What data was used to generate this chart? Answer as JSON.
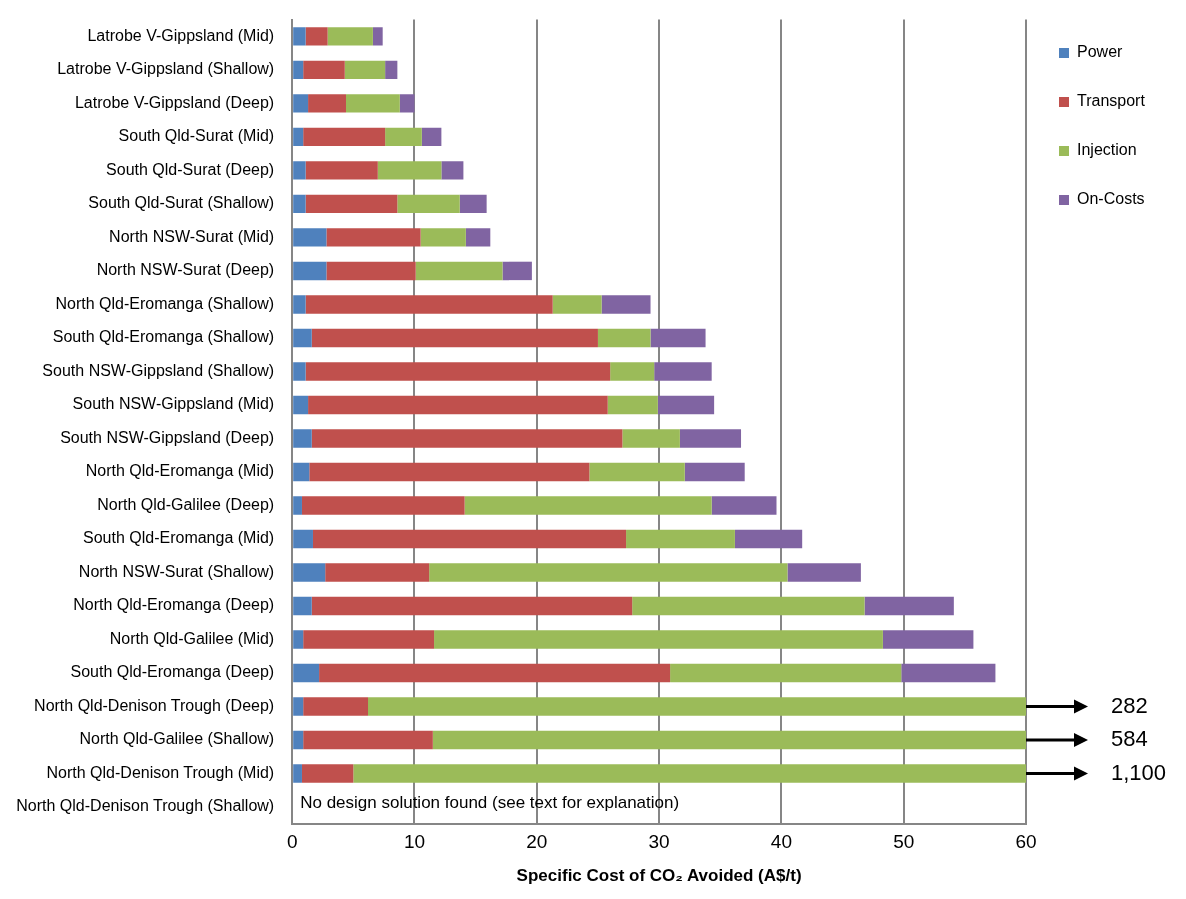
{
  "chart_data": {
    "type": "bar",
    "orientation": "horizontal",
    "stacked": true,
    "categories": [
      "Latrobe V-Gippsland (Mid)",
      "Latrobe V-Gippsland (Shallow)",
      "Latrobe V-Gippsland (Deep)",
      "South Qld-Surat (Mid)",
      "South Qld-Surat (Deep)",
      "South Qld-Surat (Shallow)",
      "North NSW-Surat (Mid)",
      "North NSW-Surat (Deep)",
      "North Qld-Eromanga (Shallow)",
      "South Qld-Eromanga (Shallow)",
      "South NSW-Gippsland (Shallow)",
      "South NSW-Gippsland (Mid)",
      "South NSW-Gippsland (Deep)",
      "North Qld-Eromanga (Mid)",
      "North Qld-Galilee (Deep)",
      "South Qld-Eromanga (Mid)",
      "North NSW-Surat (Shallow)",
      "North Qld-Eromanga (Deep)",
      "North Qld-Galilee (Mid)",
      "South Qld-Eromanga (Deep)",
      "North Qld-Denison Trough (Deep)",
      "North Qld-Galilee (Shallow)",
      "North Qld-Denison Trough (Mid)",
      "North Qld-Denison Trough (Shallow)"
    ],
    "series": [
      {
        "name": "Power",
        "color": "#4f81bd",
        "values": [
          1.1,
          0.9,
          1.3,
          0.9,
          1.1,
          1.1,
          2.8,
          2.8,
          1.1,
          1.6,
          1.1,
          1.3,
          1.6,
          1.4,
          0.8,
          1.7,
          2.7,
          1.6,
          0.9,
          2.2,
          0.9,
          0.9,
          0.8,
          null
        ]
      },
      {
        "name": "Transport",
        "color": "#c0504d",
        "values": [
          1.8,
          3.4,
          3.1,
          6.7,
          5.9,
          7.5,
          7.7,
          7.3,
          20.2,
          23.4,
          24.9,
          24.5,
          25.4,
          22.9,
          13.3,
          25.6,
          8.5,
          26.2,
          10.7,
          28.7,
          5.3,
          10.6,
          4.2,
          null
        ]
      },
      {
        "name": "Injection",
        "color": "#9bbb59",
        "values": [
          3.7,
          3.3,
          4.4,
          3.0,
          5.2,
          5.1,
          3.7,
          7.1,
          4.0,
          4.3,
          3.6,
          4.1,
          4.7,
          7.8,
          20.2,
          8.9,
          29.3,
          19.0,
          36.7,
          18.9,
          53.8,
          48.5,
          55.0,
          null
        ]
      },
      {
        "name": "On-Costs",
        "color": "#8064a2",
        "values": [
          0.8,
          1.0,
          1.2,
          1.6,
          1.8,
          2.2,
          2.0,
          2.4,
          4.0,
          4.5,
          4.7,
          4.6,
          5.0,
          4.9,
          5.3,
          5.5,
          6.0,
          7.3,
          7.4,
          7.7,
          null,
          null,
          null,
          null
        ]
      }
    ],
    "xlabel": "Specific Cost of CO₂ Avoided (A$/t)",
    "xlim": [
      0,
      60
    ],
    "xticks": [
      0,
      10,
      20,
      30,
      40,
      50,
      60
    ],
    "grid": "x",
    "legend": "right",
    "annotations": [
      "282",
      "584",
      "1,100",
      "No design solution found (see text for explanation)"
    ]
  }
}
